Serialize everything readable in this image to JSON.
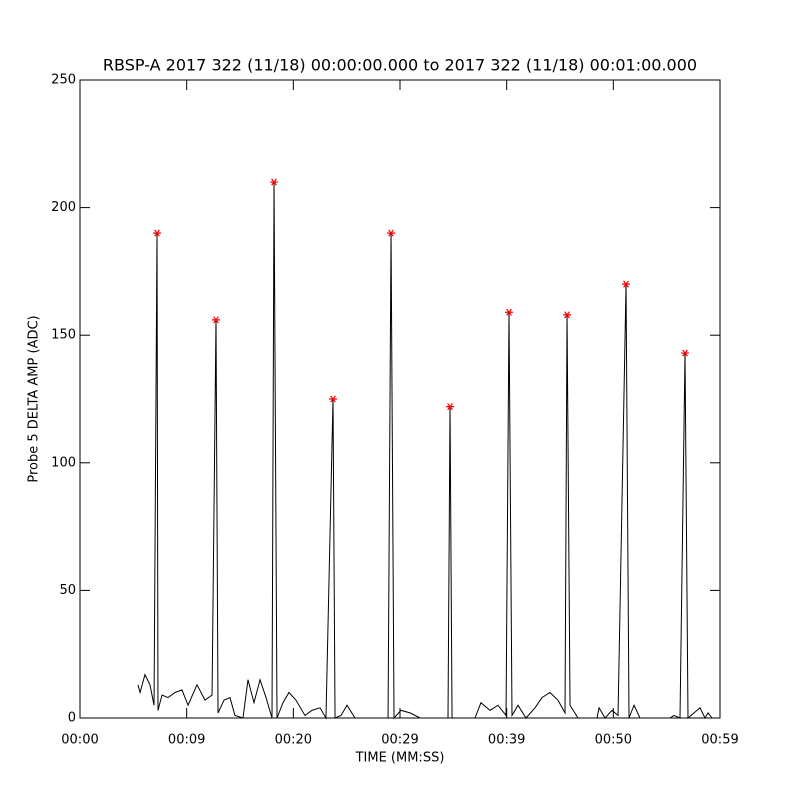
{
  "chart_data": {
    "type": "line",
    "title": "RBSP-A 2017 322 (11/18) 00:00:00.000 to 2017 322 (11/18) 00:01:00.000",
    "xlabel": "TIME (MM:SS)",
    "ylabel": "Probe 5 DELTA AMP (ADC)",
    "xlim": [
      0,
      60
    ],
    "xticks": [
      {
        "value": 0,
        "label": "00:00"
      },
      {
        "value": 10,
        "label": "00:09"
      },
      {
        "value": 20,
        "label": "00:20"
      },
      {
        "value": 30,
        "label": "00:29"
      },
      {
        "value": 40,
        "label": "00:39"
      },
      {
        "value": 50,
        "label": "00:50"
      },
      {
        "value": 60,
        "label": "00:59"
      }
    ],
    "ylim": [
      0,
      250
    ],
    "yticks": [
      0,
      50,
      100,
      150,
      200,
      250
    ],
    "series": [
      {
        "color": "#000000",
        "x": [
          5.44,
          5.63,
          6.09,
          6.56,
          6.94,
          7.22,
          7.31,
          7.69,
          8.25,
          8.91,
          9.56,
          10.13,
          10.97,
          11.72,
          12.38,
          12.75,
          12.94,
          13.5,
          14.06,
          14.53,
          15.28,
          15.75,
          16.31,
          16.88,
          17.44,
          18.0,
          18.19,
          18.47,
          19.03,
          19.59,
          20.25,
          21.09,
          21.75,
          22.5,
          23.06,
          23.72,
          23.91,
          24.47,
          25.03,
          25.78,
          28.88,
          29.16,
          29.44,
          30.09,
          30.94,
          31.88,
          34.5,
          34.69,
          34.88,
          37.03,
          37.59,
          38.44,
          39.19,
          39.94,
          40.22,
          40.5,
          41.06,
          41.81,
          42.66,
          43.31,
          44.06,
          44.81,
          45.47,
          45.66,
          45.94,
          46.69,
          48.47,
          48.66,
          49.22,
          49.88,
          50.44,
          51.19,
          51.47,
          51.94,
          52.5,
          55.31,
          55.69,
          56.25,
          56.72,
          57.0,
          58.13,
          58.59,
          58.88,
          59.25
        ],
        "values": [
          13,
          10,
          17,
          13,
          5,
          190,
          3,
          9,
          8,
          10,
          11,
          5,
          13,
          7,
          9,
          156,
          2,
          7,
          8,
          1,
          0,
          15,
          6,
          15,
          8,
          0,
          210,
          0,
          6,
          10,
          7,
          1,
          3,
          4,
          0,
          125,
          0,
          1,
          5,
          0,
          0,
          190,
          0,
          3,
          2,
          0,
          0,
          122,
          0,
          0,
          6,
          3,
          5,
          1,
          159,
          1,
          5,
          0,
          4,
          8,
          10,
          7,
          2,
          158,
          5,
          0,
          0,
          4,
          0,
          3,
          1,
          170,
          0,
          5,
          0,
          0,
          1,
          0,
          143,
          0,
          4,
          0,
          2,
          0
        ]
      },
      {
        "color": "#ff0000",
        "marker": "asterisk",
        "x": [
          7.22,
          12.75,
          18.19,
          23.72,
          29.16,
          34.69,
          40.22,
          45.66,
          51.19,
          56.72
        ],
        "values": [
          190,
          156,
          210,
          125,
          190,
          122,
          159,
          158,
          170,
          143
        ]
      }
    ]
  }
}
